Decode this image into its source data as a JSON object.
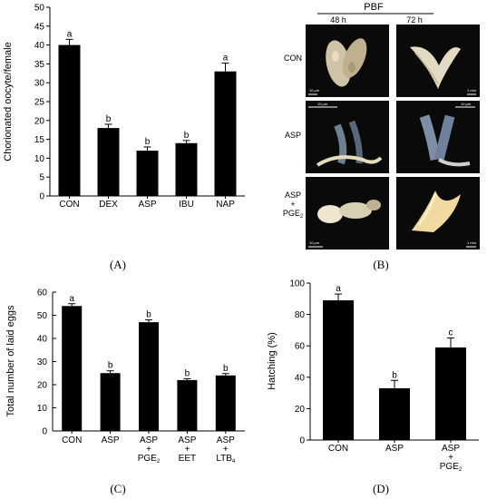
{
  "chart_data": [
    {
      "panel": "(A)",
      "type": "bar",
      "ylabel": "Chorionated oocyte/female",
      "ylim": [
        0,
        50
      ],
      "yticks": [
        0,
        5,
        10,
        15,
        20,
        25,
        30,
        35,
        40,
        45,
        50
      ],
      "categories": [
        "CON",
        "DEX",
        "ASP",
        "IBU",
        "NAP"
      ],
      "values": [
        40,
        18,
        12,
        14,
        33
      ],
      "errors": [
        1.5,
        1.0,
        1.0,
        0.7,
        2.2
      ],
      "letters": [
        "a",
        "b",
        "b",
        "b",
        "a"
      ]
    },
    {
      "panel": "(B)",
      "type": "image-grid",
      "header": "PBF",
      "columns": [
        "48 h",
        "72 h"
      ],
      "rows": [
        {
          "lines": [
            "CON"
          ]
        },
        {
          "lines": [
            "ASP"
          ]
        },
        {
          "lines": [
            "ASP",
            "+",
            "PGE",
            "2"
          ]
        }
      ],
      "scale_bars": [
        "10 μm",
        "1 mm",
        "10 μm",
        "10 μm",
        "10 μm",
        "1 mm"
      ]
    },
    {
      "panel": "(C)",
      "type": "bar",
      "ylabel": "Total number of laid eggs",
      "ylim": [
        0,
        60
      ],
      "yticks": [
        0,
        10,
        20,
        30,
        40,
        50,
        60
      ],
      "categories": [
        {
          "lines": [
            "CON"
          ]
        },
        {
          "lines": [
            "ASP"
          ]
        },
        {
          "lines": [
            "ASP",
            "+",
            "PGE",
            "2"
          ]
        },
        {
          "lines": [
            "ASP",
            "+",
            "EET"
          ]
        },
        {
          "lines": [
            "ASP",
            "+",
            "LTB",
            "4"
          ]
        }
      ],
      "values": [
        54,
        25,
        47,
        22,
        24
      ],
      "errors": [
        1.0,
        1.0,
        1.0,
        0.6,
        0.8
      ],
      "letters": [
        "a",
        "b",
        "b",
        "b",
        "b"
      ]
    },
    {
      "panel": "(D)",
      "type": "bar",
      "ylabel": "Hatching (%)",
      "ylim": [
        0,
        100
      ],
      "yticks": [
        0,
        20,
        40,
        60,
        80,
        100
      ],
      "categories": [
        {
          "lines": [
            "CON"
          ]
        },
        {
          "lines": [
            "ASP"
          ]
        },
        {
          "lines": [
            "ASP",
            "+",
            "PGE",
            "2"
          ]
        }
      ],
      "values": [
        89,
        33,
        59
      ],
      "errors": [
        4,
        5,
        6
      ],
      "letters": [
        "a",
        "b",
        "c"
      ]
    }
  ],
  "colors": {
    "bar": "#000000",
    "axis": "#000000",
    "photo_bg": "#0a0a0a",
    "scale_bar": "#ffffff"
  }
}
